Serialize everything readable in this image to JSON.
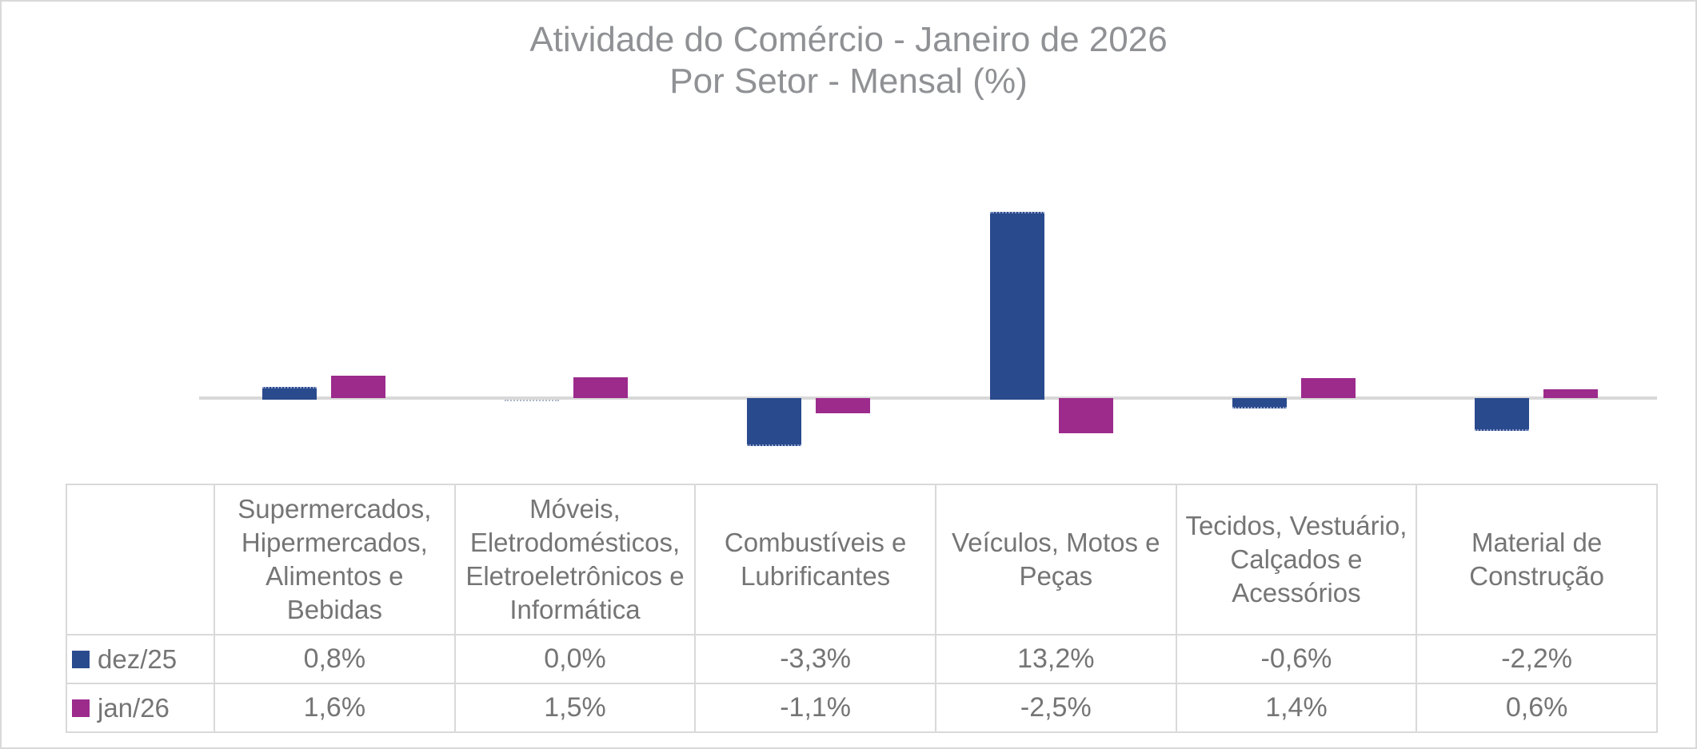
{
  "chart_data": {
    "type": "bar",
    "title": "Atividade do Comércio - Janeiro de 2026",
    "subtitle": "Por Setor - Mensal (%)",
    "categories": [
      "Supermercados, Hipermercados, Alimentos e Bebidas",
      "Móveis, Eletrodomésticos, Eletroeletrônicos e Informática",
      "Combustíveis e Lubrificantes",
      "Veículos, Motos e Peças",
      "Tecidos, Vestuário, Calçados e Acessórios",
      "Material de Construção"
    ],
    "series": [
      {
        "name": "dez/25",
        "color": "#2A4A8E",
        "values": [
          0.8,
          0.0,
          -3.3,
          13.2,
          -0.6,
          -2.2
        ],
        "labels": [
          "0,8%",
          "0,0%",
          "-3,3%",
          "13,2%",
          "-0,6%",
          "-2,2%"
        ]
      },
      {
        "name": "jan/26",
        "color": "#9C2B8C",
        "values": [
          1.6,
          1.5,
          -1.1,
          -2.5,
          1.4,
          0.6
        ],
        "labels": [
          "1,6%",
          "1,5%",
          "-1,1%",
          "-2,5%",
          "1,4%",
          "0,6%"
        ]
      }
    ],
    "ylabel": "",
    "xlabel": "",
    "ylim": [
      -4,
      15
    ],
    "grid": false,
    "legend_position": "table-left-column",
    "colors": {
      "title_text": "#8F9194",
      "table_text": "#757575",
      "table_border": "#D9D9D9",
      "axis_line": "#D8D8D8",
      "frame_border": "#D9D9D9",
      "zero_bar_dotted": "#ADB6C6",
      "selected_edge_dotted": "#8FA0C8"
    }
  }
}
